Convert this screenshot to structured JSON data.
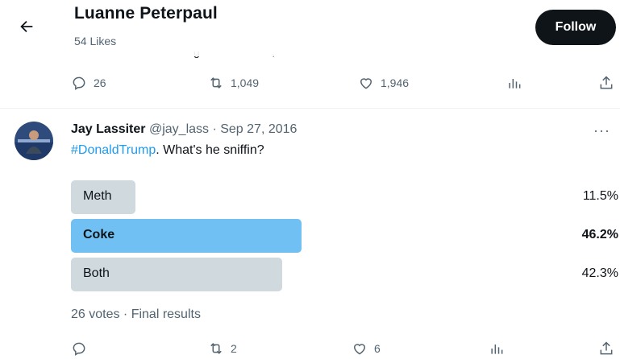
{
  "header": {
    "title": "Luanne Peterpaul",
    "subtitle": "54 Likes",
    "follow_label": "Follow",
    "back_icon": "arrow-left-icon"
  },
  "prev_tweet": {
    "partial_text": "g                       ,",
    "reply_count": "26",
    "retweet_count": "1,049",
    "like_count": "1,946"
  },
  "tweet": {
    "author_name": "Jay Lassiter",
    "handle_date": "@jay_lass · Sep 27, 2016",
    "hashtag": "#DonaldTrump",
    "text": ". What's he sniffin?",
    "more": "···",
    "poll": {
      "options": [
        {
          "label": "Meth",
          "percent": "11.5%",
          "value": 11.5,
          "winner": false
        },
        {
          "label": "Coke",
          "percent": "46.2%",
          "value": 46.2,
          "winner": true
        },
        {
          "label": "Both",
          "percent": "42.3%",
          "value": 42.3,
          "winner": false
        }
      ],
      "summary": "26 votes · Final results"
    },
    "reply_count": "",
    "retweet_count": "2",
    "like_count": "6"
  },
  "colors": {
    "accent": "#1d9bf0",
    "winner_bar": "#71c0f4",
    "bar": "#cfd9de",
    "secondary_text": "#536471"
  }
}
